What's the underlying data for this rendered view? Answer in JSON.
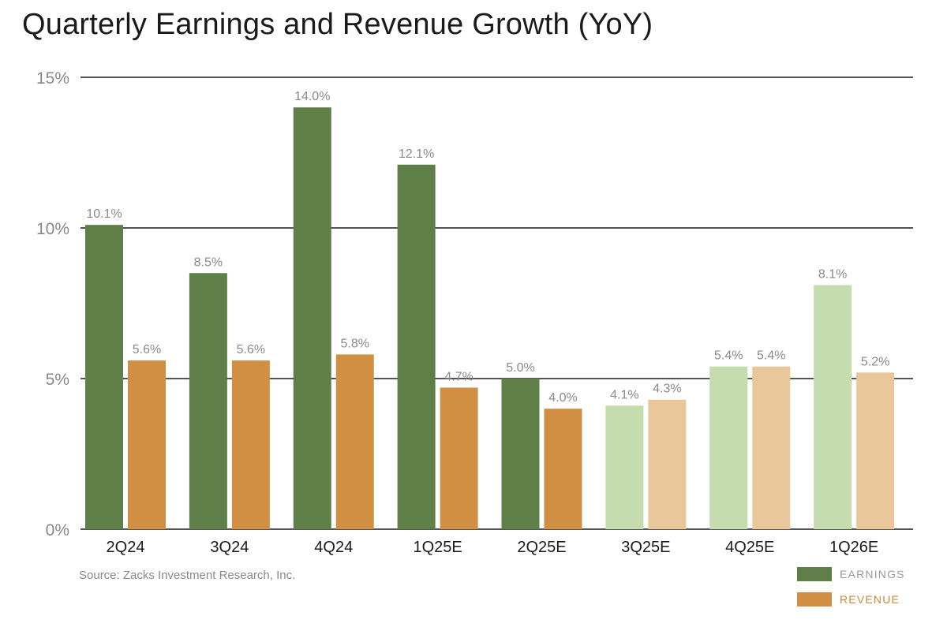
{
  "chart_data": {
    "type": "bar",
    "title": "Quarterly Earnings and Revenue Growth (YoY)",
    "categories": [
      "2Q24",
      "3Q24",
      "4Q24",
      "1Q25E",
      "2Q25E",
      "3Q25E",
      "4Q25E",
      "1Q26E"
    ],
    "series": [
      {
        "name": "EARNINGS",
        "values": [
          10.1,
          8.5,
          14.0,
          12.1,
          5.0,
          4.1,
          5.4,
          8.1
        ],
        "labels": [
          "10.1%",
          "8.5%",
          "14.0%",
          "12.1%",
          "5.0%",
          "4.1%",
          "5.4%",
          "8.1%"
        ]
      },
      {
        "name": "REVENUE",
        "values": [
          5.6,
          5.6,
          5.8,
          4.7,
          4.0,
          4.3,
          5.4,
          5.2
        ],
        "labels": [
          "5.6%",
          "5.6%",
          "5.8%",
          "4.7%",
          "4.0%",
          "4.3%",
          "5.4%",
          "5.2%"
        ]
      }
    ],
    "estimate_from_category": "3Q25E",
    "ylim": [
      0,
      15
    ],
    "yticks": [
      0,
      5,
      10,
      15
    ],
    "ytick_labels": [
      "0%",
      "5%",
      "10%",
      "15%"
    ],
    "grid": true,
    "legend_position": "bottom-right",
    "source": "Source: Zacks Investment Research, Inc."
  },
  "colors": {
    "earnings": "#5e8048",
    "earnings_estimate": "#c5dcae",
    "revenue": "#d18f44",
    "revenue_estimate": "#e9c79b",
    "earnings_legend_text": "#9a9a9a",
    "revenue_legend_text": "#c8893e",
    "gridline": "#1a1a1a"
  }
}
